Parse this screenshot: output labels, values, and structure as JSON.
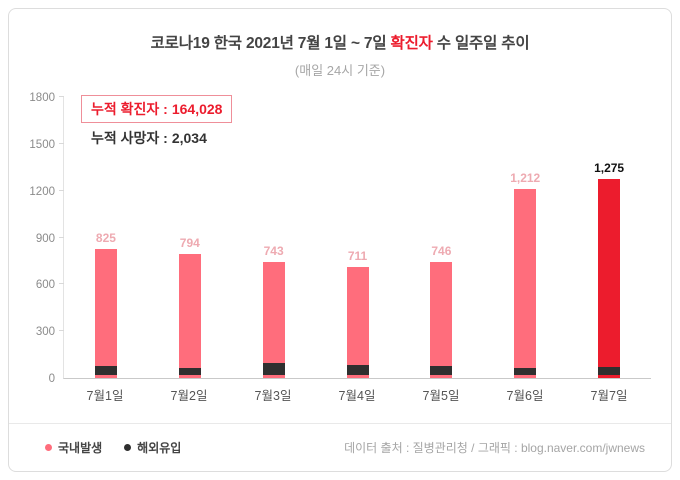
{
  "header": {
    "title_prefix": "코로나19 한국 2021년 7월 1일 ~ 7일 ",
    "title_highlight": "확진자",
    "title_suffix": " 수 일주일 추이",
    "subtitle": "(매일 24시 기준)"
  },
  "stats": {
    "confirmed_label": "누적 확진자 :",
    "confirmed_value": "164,028",
    "deaths_label": "누적 사망자 :",
    "deaths_value": "2,034"
  },
  "chart_data": {
    "type": "bar",
    "stacked": true,
    "categories": [
      "7월1일",
      "7월2일",
      "7월3일",
      "7월4일",
      "7월5일",
      "7월6일",
      "7월7일"
    ],
    "totals": [
      825,
      794,
      743,
      711,
      746,
      1212,
      1275
    ],
    "total_labels": [
      "825",
      "794",
      "743",
      "711",
      "746",
      "1,212",
      "1,275"
    ],
    "series": [
      {
        "name": "국내발생",
        "color": "#ff6d7c",
        "values": [
          765,
          749,
          668,
          646,
          691,
          1167,
          1225
        ]
      },
      {
        "name": "해외유입",
        "color": "#2f2f2f",
        "values": [
          60,
          45,
          75,
          65,
          55,
          45,
          50
        ]
      }
    ],
    "highlight_index": 6,
    "highlight_color": "#ec1c2d",
    "value_label_color": "#eeaab1",
    "highlight_value_color": "#111111",
    "ylim": [
      0,
      1800
    ],
    "yticks": [
      0,
      300,
      600,
      900,
      1200,
      1500,
      1800
    ],
    "grid": false,
    "legend_position": "bottom-left"
  },
  "legend": [
    {
      "label": "국내발생",
      "color": "#ff6d7c"
    },
    {
      "label": "해외유입",
      "color": "#2f2f2f"
    }
  ],
  "footer": {
    "source": "데이터 출처 : 질병관리청 / 그래픽 : blog.naver.com/jwnews"
  }
}
